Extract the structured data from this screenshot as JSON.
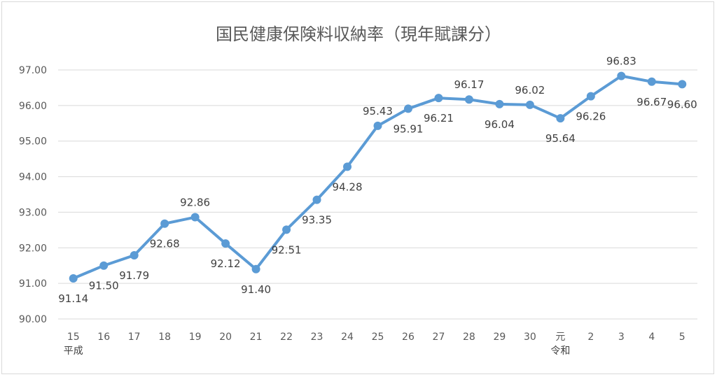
{
  "chart_data": {
    "type": "line",
    "title": "国民健康保険料収納率（現年賦課分）",
    "categories": [
      "15",
      "16",
      "17",
      "18",
      "19",
      "20",
      "21",
      "22",
      "23",
      "24",
      "25",
      "26",
      "27",
      "28",
      "29",
      "30",
      "元",
      "2",
      "3",
      "4",
      "5"
    ],
    "era_labels": [
      {
        "category_index": 0,
        "label": "平成"
      },
      {
        "category_index": 16,
        "label": "令和"
      }
    ],
    "series": [
      {
        "values": [
          91.14,
          91.5,
          91.79,
          92.68,
          92.86,
          92.12,
          91.4,
          92.51,
          93.35,
          94.28,
          95.43,
          95.91,
          96.21,
          96.17,
          96.04,
          96.02,
          95.64,
          96.26,
          96.83,
          96.67,
          96.6
        ],
        "labels": [
          "91.14",
          "91.50",
          "91.79",
          "92.68",
          "92.86",
          "92.12",
          "91.40",
          "92.51",
          "93.35",
          "94.28",
          "95.43",
          "95.91",
          "96.21",
          "96.17",
          "96.04",
          "96.02",
          "95.64",
          "96.26",
          "96.83",
          "96.67",
          "96.60"
        ],
        "label_positions": [
          "below",
          "below",
          "below",
          "below",
          "above",
          "below",
          "below",
          "below",
          "below",
          "below",
          "above",
          "below",
          "below",
          "above",
          "below",
          "above",
          "below",
          "below",
          "above",
          "below",
          "below"
        ],
        "color": "#5B9BD5"
      }
    ],
    "yticks": [
      "90.00",
      "91.00",
      "92.00",
      "93.00",
      "94.00",
      "95.00",
      "96.00",
      "97.00"
    ],
    "ylim": [
      90,
      97
    ],
    "xlabel": "",
    "ylabel": "",
    "grid": true,
    "legend": "none",
    "gridline_color": "#d9d9d9",
    "axis_color": "#d9d9d9"
  }
}
